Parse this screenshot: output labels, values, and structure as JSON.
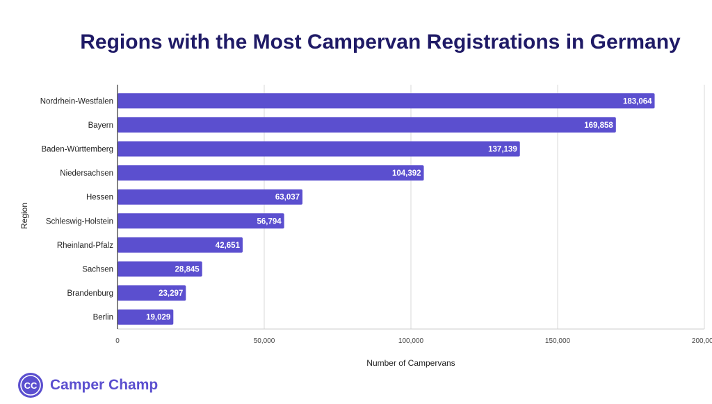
{
  "chart_data": {
    "type": "bar",
    "orientation": "horizontal",
    "title": "Regions with the Most Campervan Registrations in Germany",
    "xlabel": "Number of Campervans",
    "ylabel": "Region",
    "categories": [
      "Nordrhein-Westfalen",
      "Bayern",
      "Baden-Württemberg",
      "Niedersachsen",
      "Hessen",
      "Schleswig-Holstein",
      "Rheinland-Pfalz",
      "Sachsen",
      "Brandenburg",
      "Berlin"
    ],
    "values": [
      183064,
      169858,
      137139,
      104392,
      63037,
      56794,
      42651,
      28845,
      23297,
      19029
    ],
    "value_labels": [
      "183,064",
      "169,858",
      "137,139",
      "104,392",
      "63,037",
      "56,794",
      "42,651",
      "28,845",
      "23,297",
      "19,029"
    ],
    "xlim": [
      0,
      200000
    ],
    "xticks": [
      0,
      50000,
      100000,
      150000,
      200000
    ],
    "xtick_labels": [
      "0",
      "50,000",
      "100,000",
      "150,000",
      "200,000"
    ],
    "grid": true,
    "bar_color": "#5b4fcf"
  },
  "brand": {
    "logo_text": "CC",
    "name": "Camper Champ",
    "color": "#5b4fcf"
  },
  "colors": {
    "title": "#1f1a66",
    "gridline": "#d9d9d9",
    "axis": "#333333"
  }
}
